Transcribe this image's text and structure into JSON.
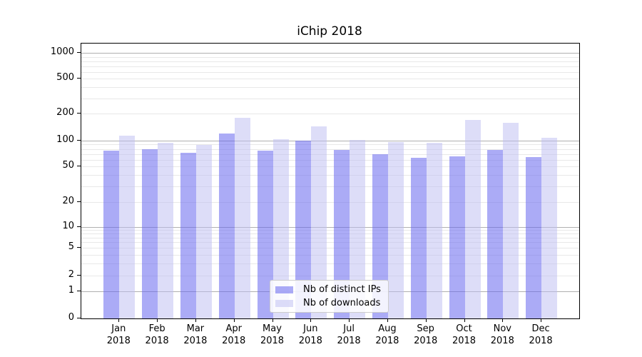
{
  "title": "iChip 2018",
  "chart_data": {
    "type": "bar",
    "title": "iChip 2018",
    "categories": [
      "Jan",
      "Feb",
      "Mar",
      "Apr",
      "May",
      "Jun",
      "Jul",
      "Aug",
      "Sep",
      "Oct",
      "Nov",
      "Dec"
    ],
    "category_year": "2018",
    "series": [
      {
        "name": "Nb of distinct IPs",
        "color": "#6666ee",
        "fill_rgba": "rgba(102,102,238,0.55)",
        "values": [
          76,
          80,
          72,
          120,
          76,
          100,
          78,
          70,
          63,
          66,
          78,
          65
        ]
      },
      {
        "name": "Nb of downloads",
        "color": "#bbbbf2",
        "fill_rgba": "rgba(187,187,242,0.5)",
        "values": [
          113,
          94,
          89,
          181,
          103,
          145,
          101,
          96,
          95,
          169,
          158,
          107
        ]
      }
    ],
    "y_ticks": [
      0,
      1,
      2,
      5,
      10,
      20,
      50,
      100,
      200,
      500,
      1000
    ],
    "y_scale": "symlog",
    "ylim": [
      0,
      1000
    ],
    "grid": true,
    "legend_position": "lower center"
  }
}
